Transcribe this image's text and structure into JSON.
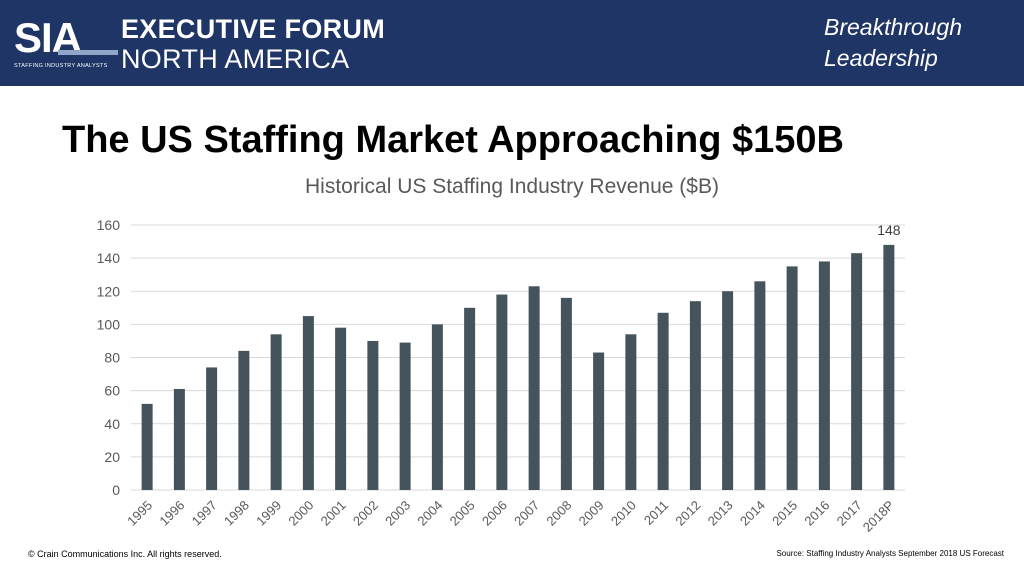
{
  "header": {
    "logo_text": "SIA",
    "logo_subtext": "STAFFING INDUSTRY ANALYSTS",
    "forum_line1": "EXECUTIVE FORUM",
    "forum_line2": "NORTH AMERICA",
    "tagline_line1": "Breakthrough",
    "tagline_line2": "Leadership"
  },
  "slide_title": "The US Staffing Market Approaching $150B",
  "footer": {
    "copyright": "© Crain Communications Inc. All rights reserved.",
    "source": "Source: Staffing Industry Analysts September 2018 US Forecast"
  },
  "colors": {
    "header_bg": "#1f3566",
    "bar": "#44535c",
    "grid": "#d9d9d9"
  },
  "chart_data": {
    "type": "bar",
    "title": "Historical US Staffing Industry Revenue ($B)",
    "xlabel": "",
    "ylabel": "",
    "ylim": [
      0,
      160
    ],
    "yticks": [
      0,
      20,
      40,
      60,
      80,
      100,
      120,
      140,
      160
    ],
    "grid": true,
    "categories": [
      "1995",
      "1996",
      "1997",
      "1998",
      "1999",
      "2000",
      "2001",
      "2002",
      "2003",
      "2004",
      "2005",
      "2006",
      "2007",
      "2008",
      "2009",
      "2010",
      "2011",
      "2012",
      "2013",
      "2014",
      "2015",
      "2016",
      "2017",
      "2018P"
    ],
    "values": [
      52,
      61,
      74,
      84,
      94,
      105,
      98,
      90,
      89,
      100,
      110,
      118,
      123,
      116,
      83,
      94,
      107,
      114,
      120,
      126,
      135,
      138,
      143,
      148
    ],
    "data_labels": [
      {
        "category": "2018P",
        "text": "148"
      }
    ]
  }
}
